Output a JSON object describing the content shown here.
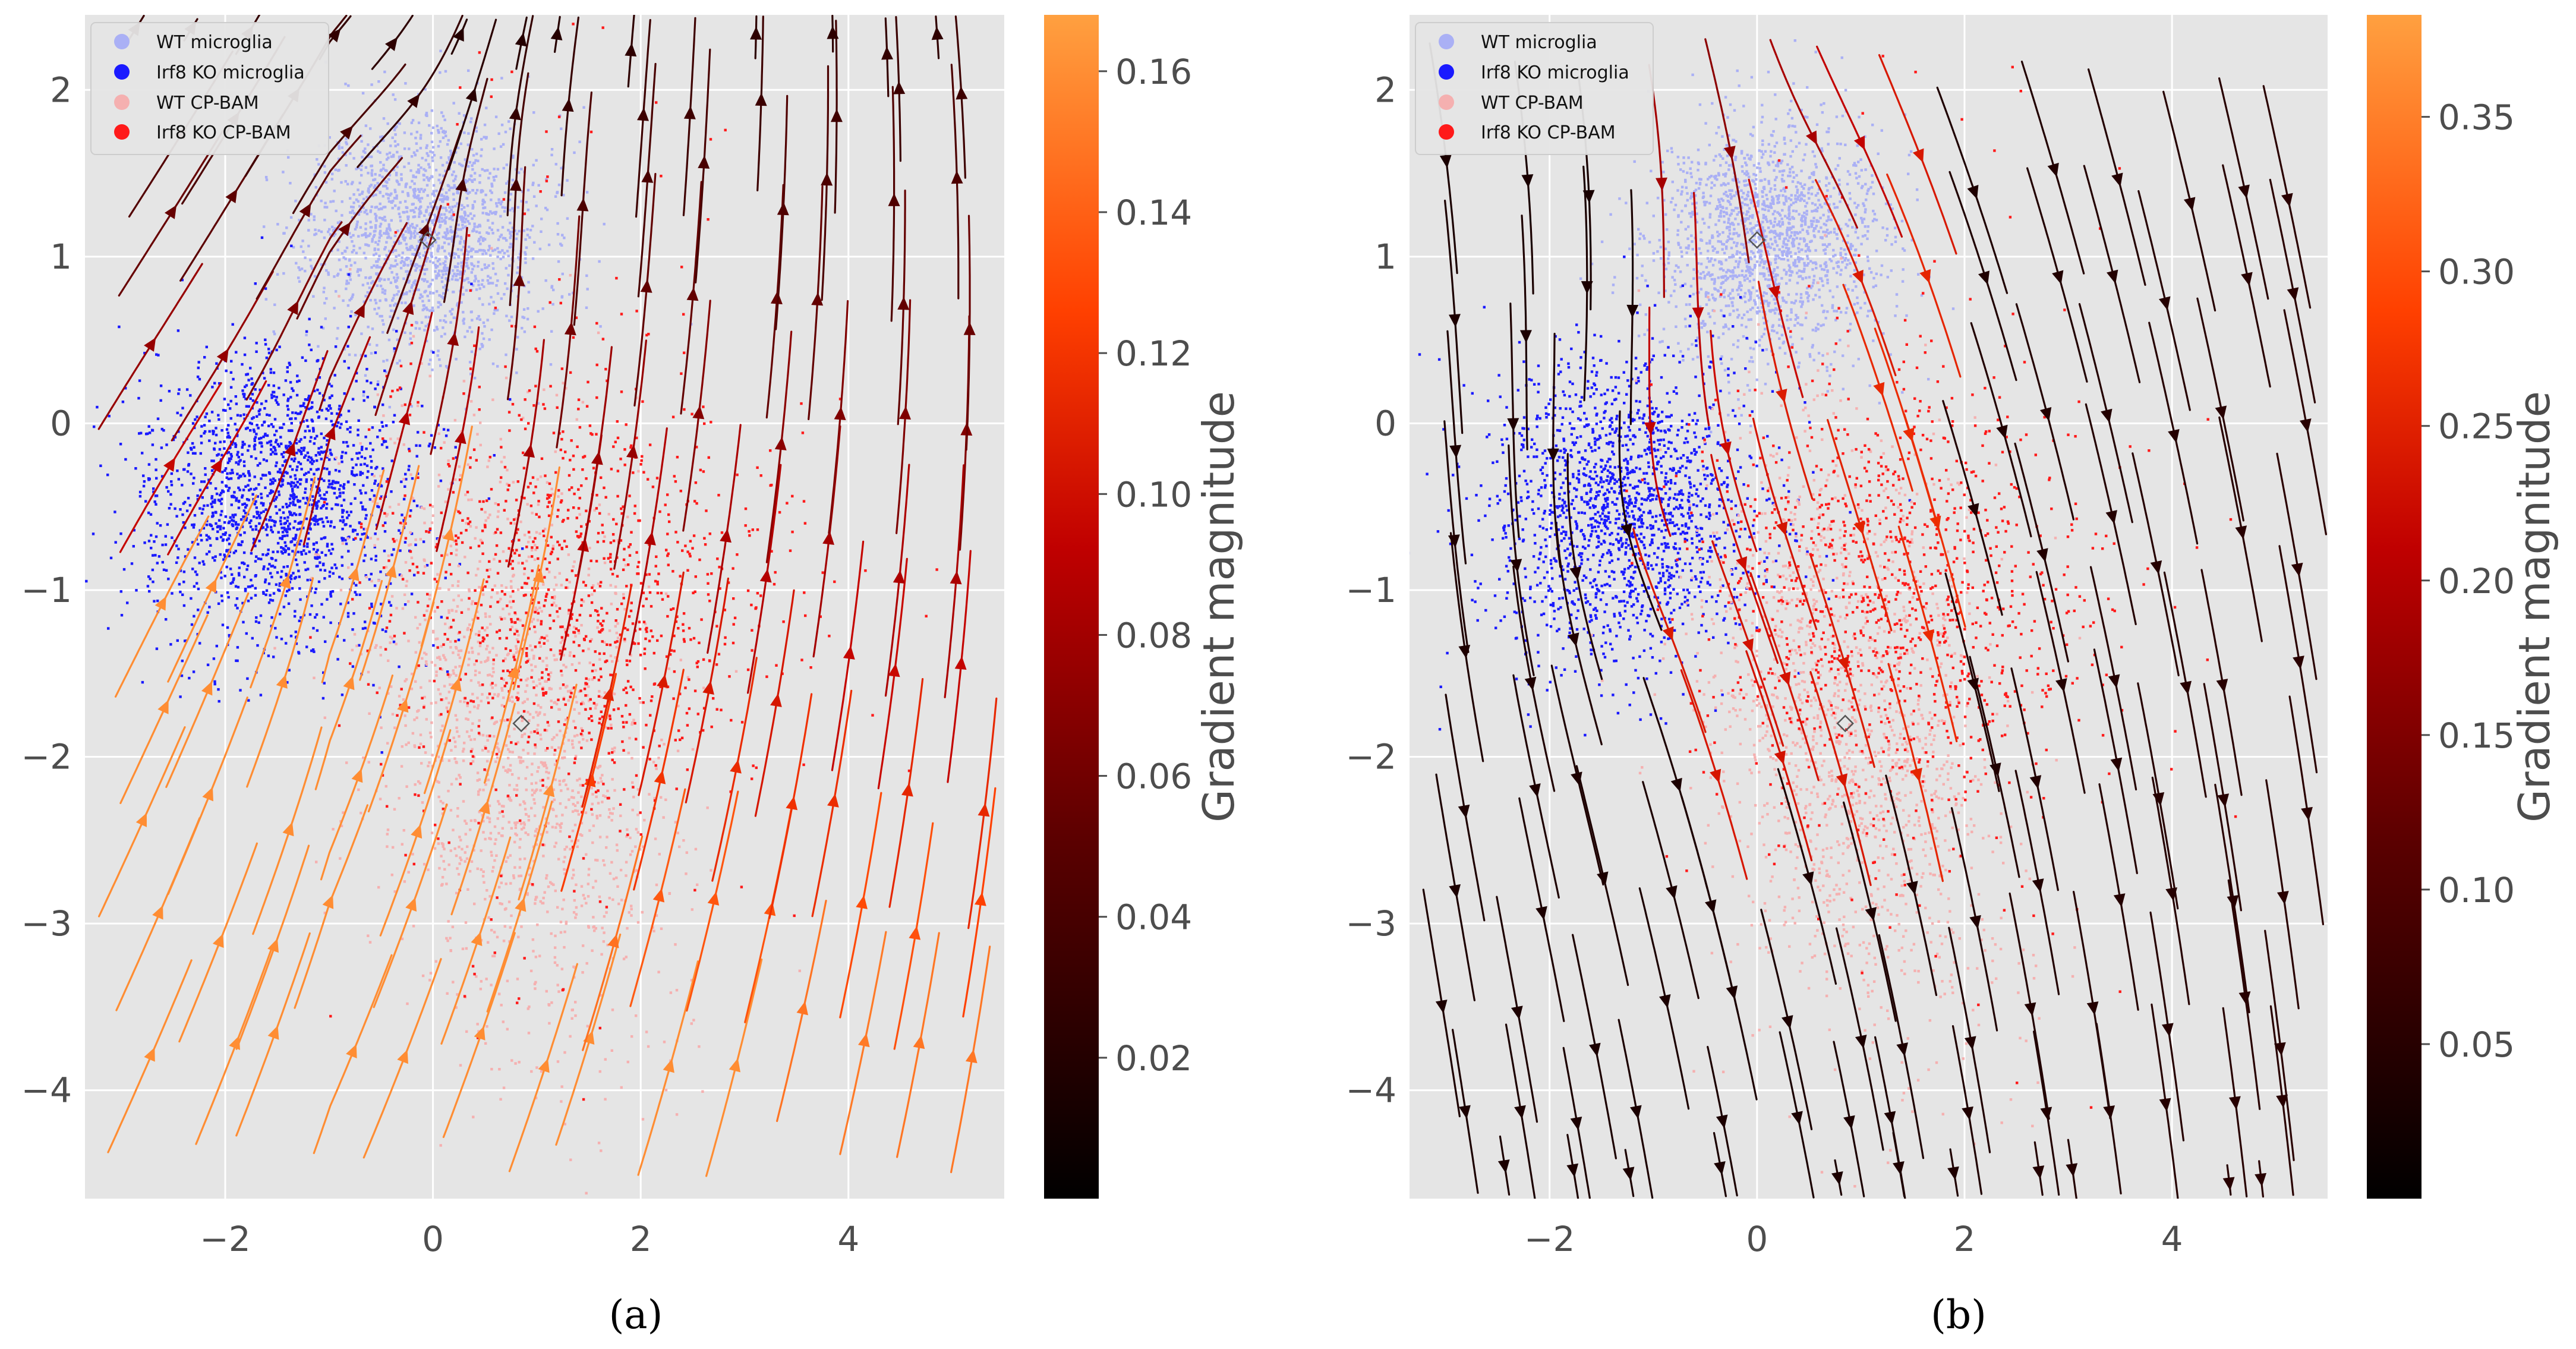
{
  "chart_data": [
    {
      "type": "scatter",
      "panel_label": "(a)",
      "x_ticks": [
        -2,
        0,
        2,
        4
      ],
      "y_ticks": [
        2,
        1,
        0,
        -1,
        -2,
        -3,
        -4
      ],
      "xlim": [
        -3.35,
        5.5
      ],
      "ylim": [
        -4.65,
        2.45
      ],
      "grid": true,
      "legend_placement": "top-left",
      "series": [
        {
          "name": "WT microglia",
          "color": "#aab0f5",
          "center": [
            -0.05,
            1.15
          ],
          "spread": [
            0.55,
            0.35
          ],
          "marker_center": [
            -0.05,
            1.1
          ]
        },
        {
          "name": "Irf8 KO microglia",
          "color": "#1a1aff",
          "center": [
            -1.5,
            -0.45
          ],
          "spread": [
            0.65,
            0.45
          ]
        },
        {
          "name": "WT CP-BAM",
          "color": "#f5b0b0",
          "center": [
            0.8,
            -1.9
          ],
          "spread": [
            0.7,
            0.8
          ],
          "marker_center": [
            0.85,
            -1.8
          ]
        },
        {
          "name": "Irf8 KO CP-BAM",
          "color": "#ff1a1a",
          "center": [
            1.0,
            -1.0
          ],
          "spread": [
            0.85,
            0.6
          ]
        }
      ],
      "stream_field": "gradient",
      "colorbar": {
        "label": "Gradient magnitude",
        "min": 0.0,
        "max": 0.168,
        "ticks": [
          0.02,
          0.04,
          0.06,
          0.08,
          0.1,
          0.12,
          0.14,
          0.16
        ],
        "cmap": "gist_heat"
      }
    },
    {
      "type": "scatter",
      "panel_label": "(b)",
      "x_ticks": [
        -2,
        0,
        2,
        4
      ],
      "y_ticks": [
        2,
        1,
        0,
        -1,
        -2,
        -3,
        -4
      ],
      "xlim": [
        -3.35,
        5.5
      ],
      "ylim": [
        -4.65,
        2.45
      ],
      "grid": true,
      "legend_placement": "top-left",
      "series": [
        {
          "name": "WT microglia",
          "color": "#aab0f5",
          "center": [
            0.1,
            1.1
          ],
          "spread": [
            0.55,
            0.35
          ],
          "marker_center": [
            0.0,
            1.1
          ]
        },
        {
          "name": "Irf8 KO microglia",
          "color": "#1a1aff",
          "center": [
            -1.3,
            -0.5
          ],
          "spread": [
            0.65,
            0.45
          ]
        },
        {
          "name": "WT CP-BAM",
          "color": "#f5b0b0",
          "center": [
            0.9,
            -1.9
          ],
          "spread": [
            0.7,
            0.8
          ],
          "marker_center": [
            0.85,
            -1.8
          ]
        },
        {
          "name": "Irf8 KO CP-BAM",
          "color": "#ff1a1a",
          "center": [
            1.0,
            -1.0
          ],
          "spread": [
            0.85,
            0.6
          ]
        }
      ],
      "stream_field": "descent",
      "colorbar": {
        "label": "Gradient magnitude",
        "min": 0.0,
        "max": 0.383,
        "ticks": [
          0.05,
          0.1,
          0.15,
          0.2,
          0.25,
          0.3,
          0.35
        ],
        "cmap": "gist_heat"
      }
    }
  ]
}
